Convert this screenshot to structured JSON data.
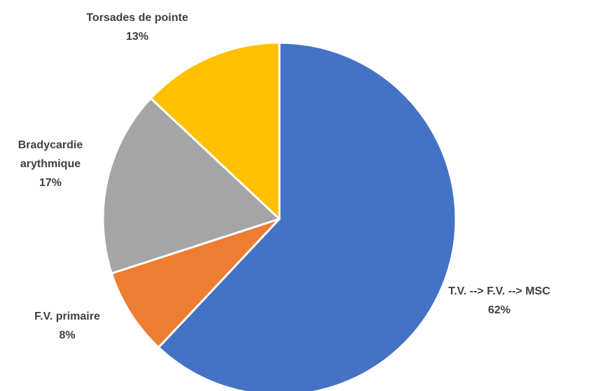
{
  "chart_data": {
    "type": "pie",
    "categories": [
      "T.V. --> F.V. --> MSC",
      "F.V. primaire",
      "Bradycardie arythmique",
      "Torsades de pointe"
    ],
    "values": [
      62,
      8,
      17,
      13
    ],
    "value_labels": [
      "62%",
      "8%",
      "17%",
      "13%"
    ],
    "colors": [
      "#4472c4",
      "#ed7d31",
      "#a5a5a5",
      "#ffc000"
    ]
  }
}
